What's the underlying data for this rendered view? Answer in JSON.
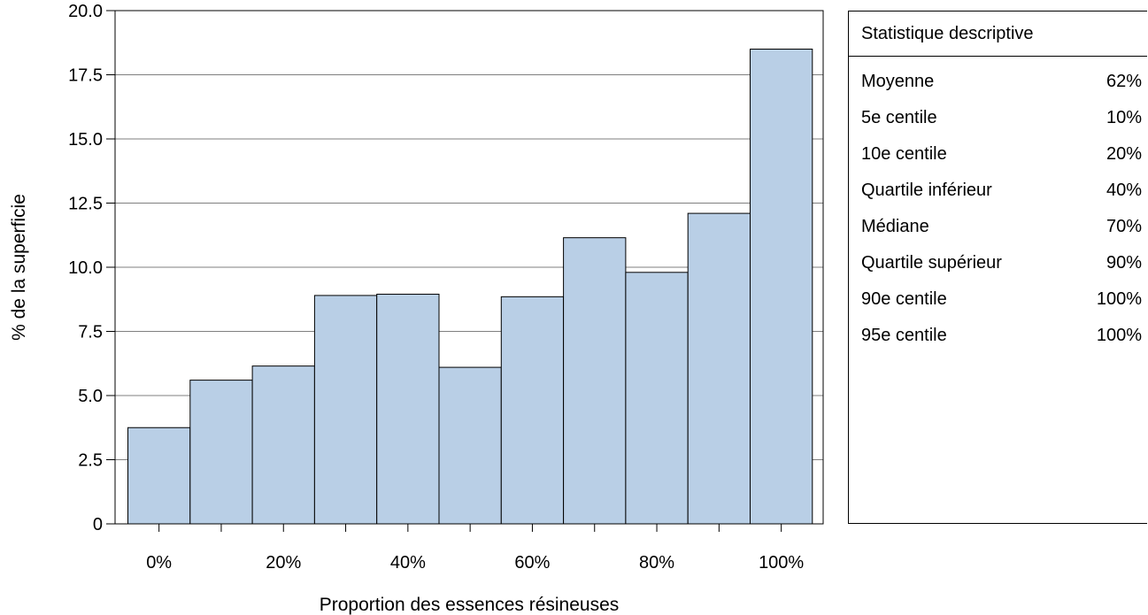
{
  "chart_data": {
    "type": "bar",
    "title": "",
    "xlabel": "Proportion des essences résineuses",
    "ylabel": "% de la superficie",
    "categories": [
      "0%",
      "10%",
      "20%",
      "30%",
      "40%",
      "50%",
      "60%",
      "70%",
      "80%",
      "90%",
      "100%"
    ],
    "values": [
      3.75,
      5.6,
      6.15,
      8.9,
      8.95,
      6.1,
      8.85,
      11.15,
      9.8,
      12.1,
      18.5
    ],
    "x_tick_labels": [
      "0%",
      "20%",
      "40%",
      "60%",
      "80%",
      "100%"
    ],
    "y_tick_labels": [
      "0",
      "2.5",
      "5.0",
      "7.5",
      "10.0",
      "12.5",
      "15.0",
      "17.5",
      "20.0"
    ],
    "ylim": [
      0,
      20
    ],
    "grid": true,
    "bar_color": "#b9cfe6"
  },
  "stats": {
    "title": "Statistique descriptive",
    "rows": [
      {
        "label": "Moyenne",
        "value": "62%"
      },
      {
        "label": "5e centile",
        "value": "10%"
      },
      {
        "label": "10e centile",
        "value": "20%"
      },
      {
        "label": "Quartile inférieur",
        "value": "40%"
      },
      {
        "label": "Médiane",
        "value": "70%"
      },
      {
        "label": "Quartile supérieur",
        "value": "90%"
      },
      {
        "label": "90e centile",
        "value": "100%"
      },
      {
        "label": "95e centile",
        "value": "100%"
      }
    ]
  }
}
